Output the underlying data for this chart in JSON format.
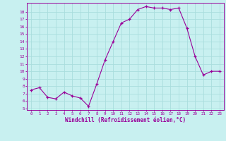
{
  "x": [
    0,
    1,
    2,
    3,
    4,
    5,
    6,
    7,
    8,
    9,
    10,
    11,
    12,
    13,
    14,
    15,
    16,
    17,
    18,
    19,
    20,
    21,
    22,
    23
  ],
  "y": [
    7.5,
    7.8,
    6.5,
    6.3,
    7.2,
    6.7,
    6.4,
    5.3,
    8.3,
    11.5,
    14.0,
    16.5,
    17.0,
    18.3,
    18.7,
    18.5,
    18.5,
    18.3,
    18.5,
    15.8,
    12.0,
    9.5,
    10.0,
    10.0
  ],
  "xlabel": "Windchill (Refroidissement éolien,°C)",
  "ylabel_ticks": [
    5,
    6,
    7,
    8,
    9,
    10,
    11,
    12,
    13,
    14,
    15,
    16,
    17,
    18
  ],
  "xlim": [
    -0.5,
    23.5
  ],
  "ylim": [
    4.8,
    19.2
  ],
  "bg_color": "#c8f0f0",
  "line_color": "#990099",
  "marker_color": "#990099",
  "grid_color": "#aadddd",
  "tick_label_color": "#990099",
  "xlabel_color": "#990099"
}
